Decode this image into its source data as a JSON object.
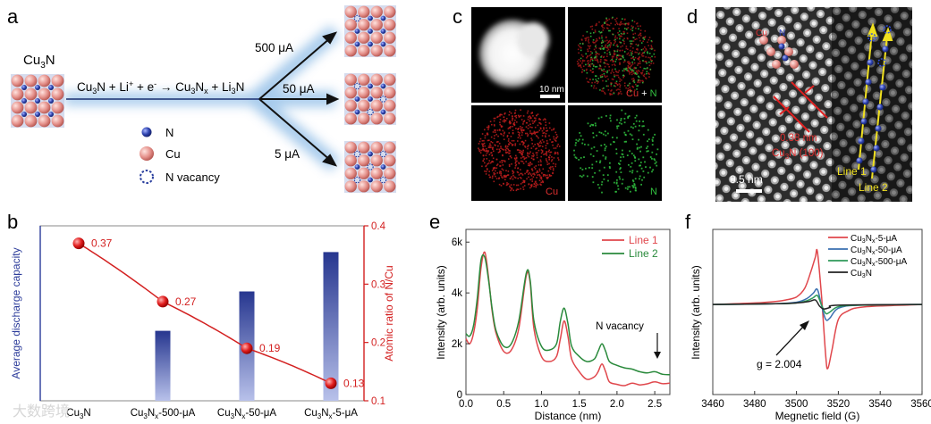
{
  "panel_labels": {
    "a": "a",
    "b": "b",
    "c": "c",
    "d": "d",
    "e": "e",
    "f": "f"
  },
  "panel_a": {
    "start_label": "Cu3N",
    "reaction": "Cu3N + Li+ + e- → Cu3Nx + Li3N",
    "branches": [
      {
        "label": "500 μA"
      },
      {
        "label": "50 μA"
      },
      {
        "label": "5 μA"
      }
    ],
    "legend": [
      {
        "symbol": "n-atom-icon",
        "text": "N"
      },
      {
        "symbol": "cu-atom-icon",
        "text": "Cu"
      },
      {
        "symbol": "n-vacancy-icon",
        "text": "N vacancy"
      }
    ],
    "colors": {
      "n": "#2a3f9e",
      "cu": "#e79a95",
      "vacancy": "#2a3f9e",
      "glow": "#9fc6ea"
    }
  },
  "panel_c": {
    "scale_bar": "10 nm",
    "tiles": [
      {
        "name": "haadf",
        "label": ""
      },
      {
        "name": "overlay",
        "label_a": "Cu",
        "label_plus": " + ",
        "label_b": "N"
      },
      {
        "name": "cu-map",
        "label": "Cu"
      },
      {
        "name": "n-map",
        "label": "N"
      }
    ]
  },
  "panel_d": {
    "atom_labels": {
      "cu": "Cu",
      "n": "N"
    },
    "spacing": "0.38 nm",
    "plane": "Cu3N (100)",
    "line1": "Line 1",
    "line2": "Line 2",
    "scale_bar": "0.5 nm"
  },
  "chart_data": [
    {
      "panel": "b",
      "type": "bar",
      "title": "",
      "ylabel": "Average discharge capacity",
      "y2label": "Atomic ratio of N/Cu",
      "categories": [
        "Cu3N",
        "Cu3Nx-500-μA",
        "Cu3Nx-50-μA",
        "Cu3Nx-5-μA"
      ],
      "bar_values": [
        null,
        0.16,
        0.25,
        0.34
      ],
      "y2lim": [
        0.1,
        0.4
      ],
      "y2ticks": [
        "0.1",
        "0.2",
        "0.3",
        "0.4"
      ],
      "ratio_series": {
        "name": "Atomic ratio of N/Cu",
        "values": [
          0.37,
          0.27,
          0.19,
          0.13
        ],
        "labels": [
          "0.37",
          "0.27",
          "0.19",
          "0.13"
        ]
      },
      "colors": {
        "bar": "#2b3b9a",
        "line": "#d32020",
        "axis_left": "#2b3b9a",
        "axis_right": "#d32020"
      }
    },
    {
      "panel": "e",
      "type": "line",
      "xlabel": "Distance (nm)",
      "ylabel": "Intensity (arb. units)",
      "xlim": [
        0,
        2.7
      ],
      "ylim": [
        0,
        6500
      ],
      "xticks": [
        "0.0",
        "0.5",
        "1.0",
        "1.5",
        "2.0",
        "2.5"
      ],
      "yticks": [
        "0",
        "2k",
        "4k",
        "6k"
      ],
      "annotation": "N vacancy",
      "series": [
        {
          "name": "Line 1",
          "color": "#e0474c",
          "x": [
            0,
            0.05,
            0.1,
            0.15,
            0.2,
            0.25,
            0.3,
            0.35,
            0.4,
            0.5,
            0.6,
            0.7,
            0.8,
            0.85,
            0.9,
            1.0,
            1.1,
            1.2,
            1.25,
            1.3,
            1.35,
            1.4,
            1.5,
            1.6,
            1.7,
            1.75,
            1.8,
            1.85,
            1.9,
            2.0,
            2.1,
            2.2,
            2.3,
            2.4,
            2.5,
            2.6,
            2.7
          ],
          "values": [
            2200,
            2000,
            2400,
            3400,
            5000,
            5600,
            4600,
            3200,
            2400,
            1700,
            1750,
            2600,
            4700,
            4400,
            2600,
            1500,
            1300,
            1500,
            2200,
            2900,
            2300,
            1400,
            900,
            600,
            700,
            900,
            1200,
            900,
            500,
            400,
            350,
            450,
            380,
            420,
            500,
            430,
            450
          ]
        },
        {
          "name": "Line 2",
          "color": "#2a8a3c",
          "x": [
            0,
            0.05,
            0.1,
            0.15,
            0.2,
            0.25,
            0.3,
            0.35,
            0.4,
            0.5,
            0.6,
            0.7,
            0.8,
            0.85,
            0.9,
            1.0,
            1.1,
            1.2,
            1.25,
            1.3,
            1.35,
            1.4,
            1.5,
            1.6,
            1.7,
            1.75,
            1.8,
            1.85,
            1.9,
            2.0,
            2.1,
            2.2,
            2.3,
            2.4,
            2.5,
            2.6,
            2.7
          ],
          "values": [
            2400,
            2300,
            2700,
            3800,
            5300,
            5400,
            4500,
            3300,
            2500,
            1900,
            2000,
            2900,
            4800,
            4500,
            2900,
            1900,
            1750,
            2000,
            2900,
            3400,
            2800,
            1900,
            1500,
            1300,
            1400,
            1700,
            2000,
            1700,
            1300,
            1150,
            1050,
            1000,
            900,
            850,
            900,
            800,
            780
          ]
        }
      ]
    },
    {
      "panel": "f",
      "type": "line",
      "xlabel": "Megnetic field (G)",
      "ylabel": "Intensity (arb. units)",
      "xlim": [
        3460,
        3560
      ],
      "xticks": [
        "3460",
        "3480",
        "3500",
        "3520",
        "3540",
        "3560"
      ],
      "annotation": "g = 2.004",
      "series": [
        {
          "name": "Cu3Nx-5-μA",
          "label_a": "Cu",
          "label_sub": "3",
          "label_b": "N",
          "label_subx": "x",
          "label_c": "-5-μA",
          "color": "#e0474c",
          "x": [
            3460,
            3480,
            3490,
            3495,
            3500,
            3504,
            3507,
            3509,
            3510,
            3512,
            3514,
            3515,
            3517,
            3520,
            3525,
            3530,
            3540,
            3560
          ],
          "values": [
            0,
            2,
            4,
            6,
            10,
            22,
            45,
            63,
            70,
            10,
            -70,
            -85,
            -60,
            -20,
            -8,
            -4,
            -2,
            0
          ]
        },
        {
          "name": "Cu3Nx-50-μA",
          "label_a": "Cu",
          "label_sub": "3",
          "label_b": "N",
          "label_subx": "x",
          "label_c": "-50-μA",
          "color": "#3a6fb0",
          "x": [
            3460,
            3490,
            3500,
            3505,
            3508,
            3510,
            3512,
            3514,
            3516,
            3520,
            3530,
            3560
          ],
          "values": [
            0,
            1,
            3,
            8,
            15,
            20,
            -2,
            -20,
            -18,
            -5,
            -1,
            0
          ]
        },
        {
          "name": "Cu3Nx-500-μA",
          "label_a": "Cu",
          "label_sub": "3",
          "label_b": "N",
          "label_subx": "x",
          "label_c": "-500-μA",
          "color": "#2e9a5a",
          "x": [
            3460,
            3490,
            3500,
            3505,
            3508,
            3510,
            3512,
            3514,
            3516,
            3520,
            3530,
            3560
          ],
          "values": [
            0,
            1,
            2,
            5,
            9,
            12,
            -1,
            -12,
            -10,
            -3,
            -1,
            0
          ]
        },
        {
          "name": "Cu3N",
          "label_a": "Cu",
          "label_sub": "3",
          "label_b": "N",
          "label_subx": "",
          "label_c": "",
          "color": "#222222",
          "x": [
            3460,
            3490,
            3500,
            3506,
            3509,
            3511,
            3513,
            3516,
            3520,
            3560
          ],
          "values": [
            0,
            1,
            2,
            4,
            6,
            -2,
            -6,
            -4,
            -1,
            0
          ]
        }
      ]
    }
  ],
  "watermark": "大数跨境"
}
